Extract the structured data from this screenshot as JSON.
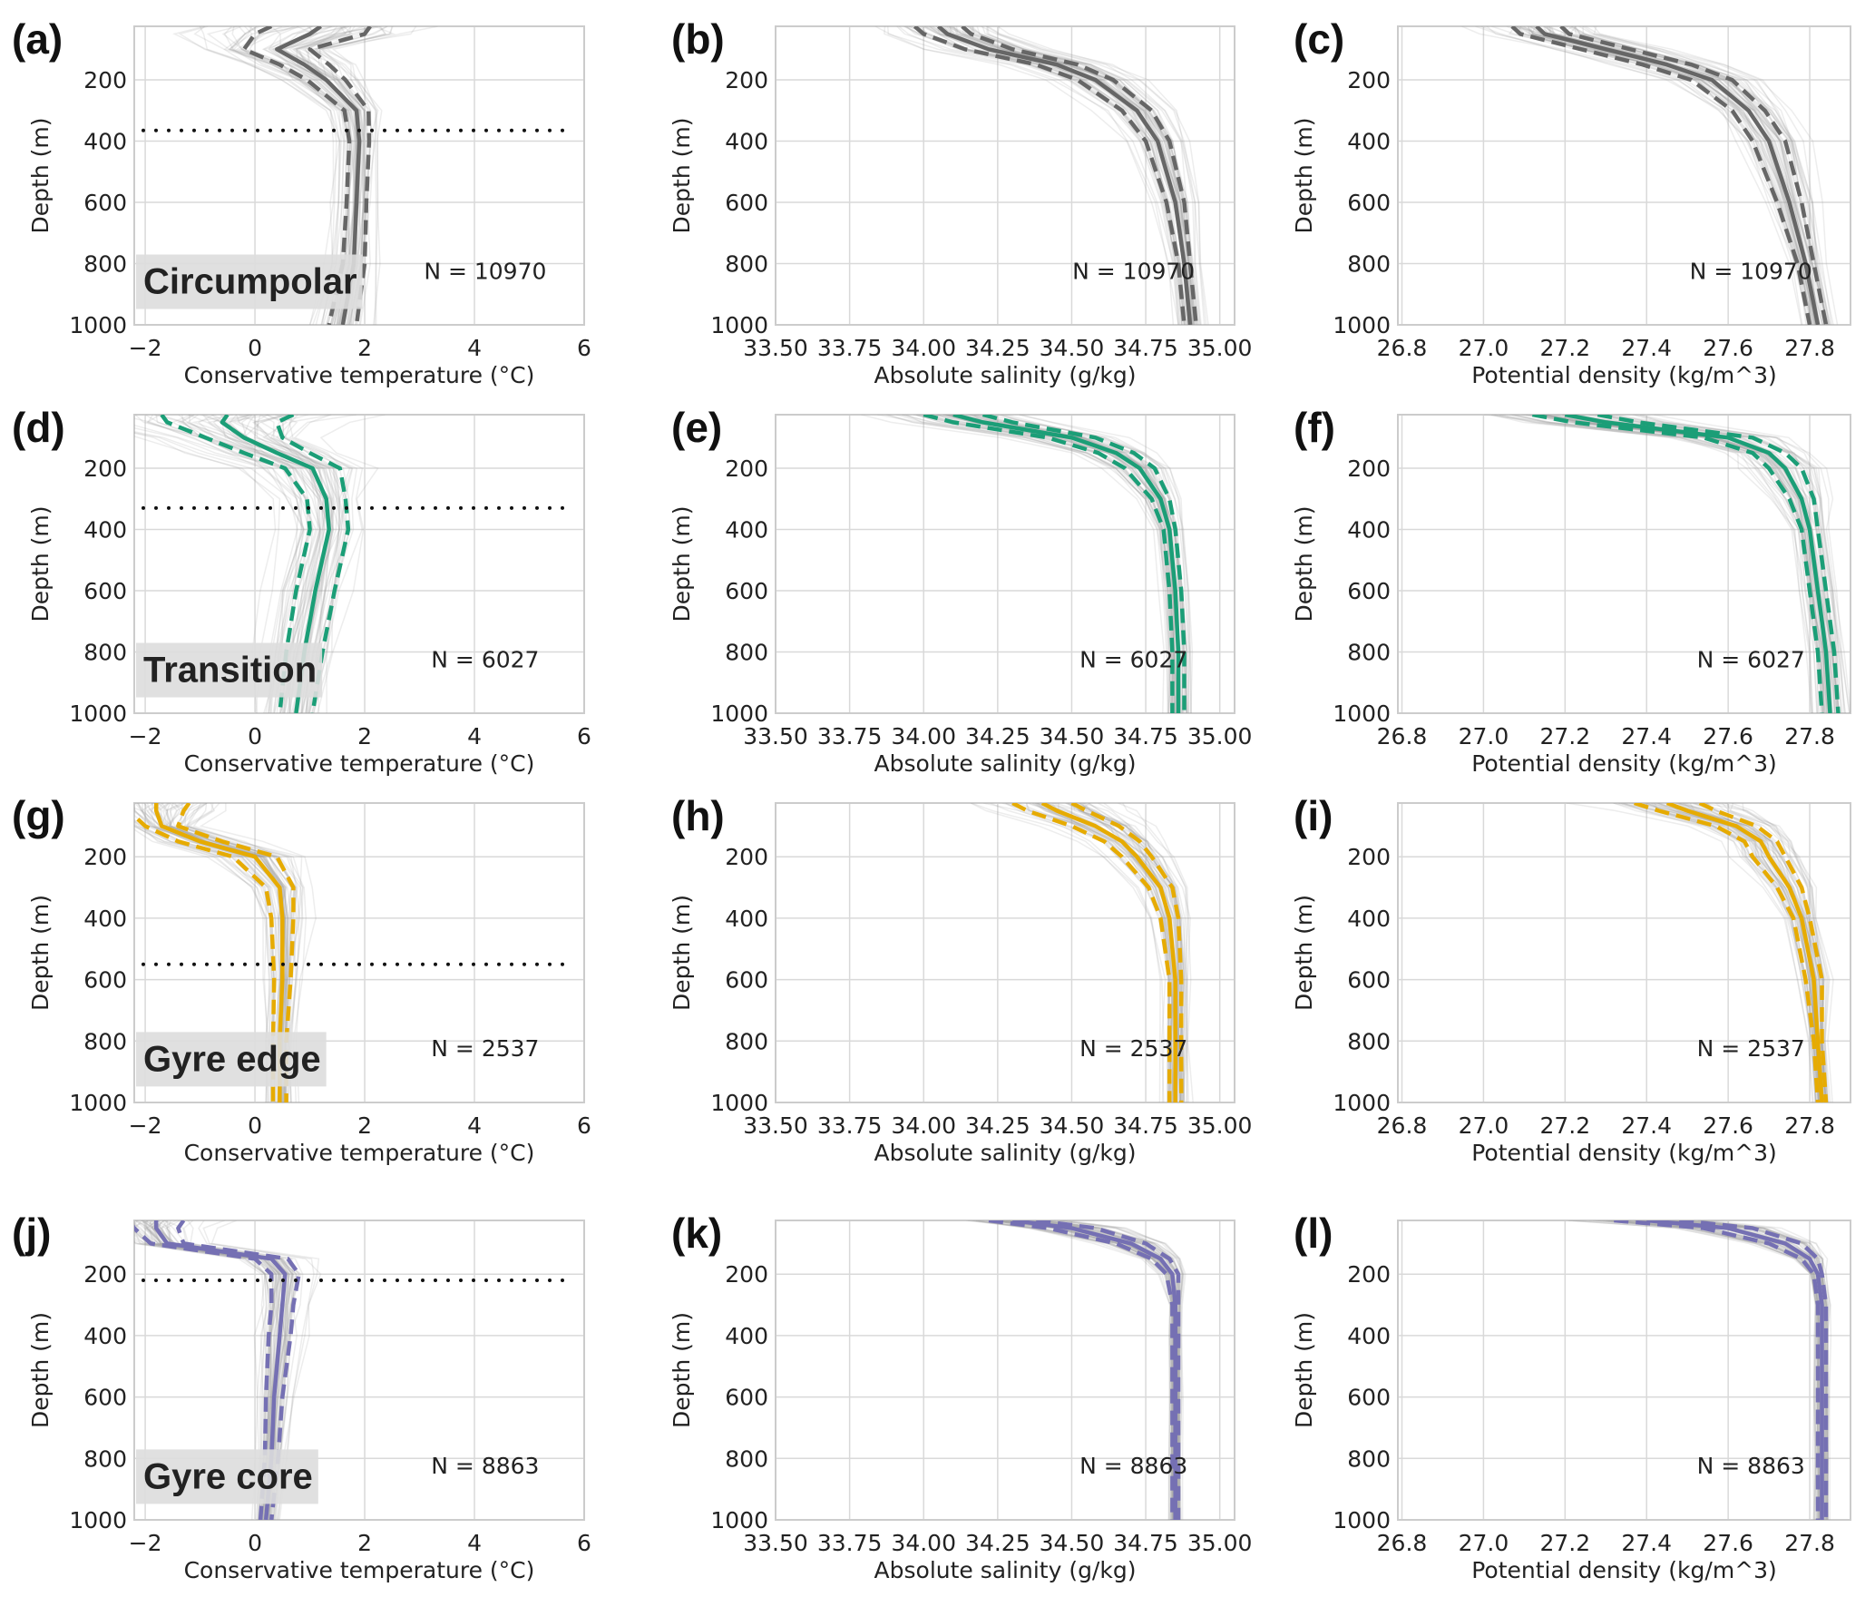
{
  "chart_data": {
    "type": "line",
    "grid": true,
    "depth_axis": {
      "label": "Depth (m)",
      "ylim": [
        1000,
        25
      ],
      "ticks": [
        "200",
        "400",
        "600",
        "800",
        "1000"
      ],
      "tick_values": [
        200,
        400,
        600,
        800,
        1000
      ]
    },
    "depth": [
      25,
      50,
      100,
      150,
      200,
      300,
      400,
      600,
      800,
      1000
    ],
    "x_axes": {
      "temperature": {
        "label": "Conservative temperature (°C)",
        "xlim": [
          -2.2,
          6
        ],
        "ticks": [
          "−2",
          "0",
          "2",
          "4",
          "6"
        ],
        "tick_values": [
          -2,
          0,
          2,
          4,
          6
        ]
      },
      "salinity": {
        "label": "Absolute salinity (g/kg)",
        "xlim": [
          33.5,
          35.05
        ],
        "ticks": [
          "33.50",
          "33.75",
          "34.00",
          "34.25",
          "34.50",
          "34.75",
          "35.00"
        ],
        "tick_values": [
          33.5,
          33.75,
          34.0,
          34.25,
          34.5,
          34.75,
          35.0
        ]
      },
      "density": {
        "label": "Potential density (kg/m^3)",
        "xlim": [
          26.79,
          27.9
        ],
        "ticks": [
          "26.8",
          "27.0",
          "27.2",
          "27.4",
          "27.6",
          "27.8"
        ],
        "tick_values": [
          26.8,
          27.0,
          27.2,
          27.4,
          27.6,
          27.8
        ]
      }
    },
    "rows": [
      {
        "region": "Circumpolar",
        "color": "#666666",
        "n_label": "N = 10970",
        "mixed_layer_depth": 365,
        "panels": [
          {
            "letter": "(a)",
            "axis": "temperature",
            "mean": [
              1.2,
              1.0,
              0.4,
              0.9,
              1.3,
              1.85,
              1.9,
              1.85,
              1.8,
              1.6
            ],
            "std": [
              0.9,
              1.0,
              0.6,
              0.45,
              0.35,
              0.22,
              0.18,
              0.18,
              0.2,
              0.25
            ]
          },
          {
            "letter": "(b)",
            "axis": "salinity",
            "mean": [
              34.05,
              34.08,
              34.22,
              34.45,
              34.58,
              34.72,
              34.79,
              34.85,
              34.88,
              34.9
            ],
            "std": [
              0.08,
              0.08,
              0.08,
              0.07,
              0.06,
              0.05,
              0.04,
              0.03,
              0.02,
              0.02
            ]
          },
          {
            "letter": "(c)",
            "axis": "density",
            "mean": [
              27.13,
              27.15,
              27.3,
              27.45,
              27.56,
              27.65,
              27.7,
              27.75,
              27.79,
              27.82
            ],
            "std": [
              0.06,
              0.06,
              0.06,
              0.06,
              0.05,
              0.04,
              0.04,
              0.03,
              0.02,
              0.02
            ]
          }
        ]
      },
      {
        "region": "Transition",
        "color": "#1b9e77",
        "n_label": "N = 6027",
        "mixed_layer_depth": 330,
        "panels": [
          {
            "letter": "(d)",
            "axis": "temperature",
            "mean": [
              -0.5,
              -0.6,
              -0.2,
              0.4,
              1.05,
              1.3,
              1.35,
              1.1,
              0.9,
              0.75
            ],
            "std": [
              1.2,
              1.0,
              0.7,
              0.6,
              0.5,
              0.35,
              0.35,
              0.35,
              0.33,
              0.3
            ]
          },
          {
            "letter": "(e)",
            "axis": "salinity",
            "mean": [
              34.1,
              34.2,
              34.5,
              34.65,
              34.73,
              34.8,
              34.83,
              34.85,
              34.86,
              34.86
            ],
            "std": [
              0.1,
              0.1,
              0.08,
              0.06,
              0.05,
              0.03,
              0.02,
              0.02,
              0.02,
              0.02
            ]
          },
          {
            "letter": "(f)",
            "axis": "density",
            "mean": [
              27.2,
              27.3,
              27.6,
              27.7,
              27.74,
              27.78,
              27.8,
              27.82,
              27.84,
              27.85
            ],
            "std": [
              0.08,
              0.08,
              0.06,
              0.04,
              0.04,
              0.03,
              0.02,
              0.02,
              0.02,
              0.02
            ]
          }
        ]
      },
      {
        "region": "Gyre edge",
        "color": "#e6ab02",
        "n_label": "N = 2537",
        "mixed_layer_depth": 550,
        "panels": [
          {
            "letter": "(g)",
            "axis": "temperature",
            "mean": [
              -1.8,
              -1.8,
              -1.7,
              -1.0,
              0.0,
              0.45,
              0.5,
              0.5,
              0.45,
              0.45
            ],
            "std": [
              0.6,
              0.5,
              0.3,
              0.4,
              0.4,
              0.25,
              0.2,
              0.15,
              0.12,
              0.12
            ]
          },
          {
            "letter": "(h)",
            "axis": "salinity",
            "mean": [
              34.4,
              34.45,
              34.58,
              34.67,
              34.72,
              34.8,
              34.83,
              34.85,
              34.85,
              34.85
            ],
            "std": [
              0.1,
              0.1,
              0.08,
              0.06,
              0.05,
              0.04,
              0.03,
              0.02,
              0.02,
              0.02
            ]
          },
          {
            "letter": "(i)",
            "axis": "density",
            "mean": [
              27.45,
              27.5,
              27.62,
              27.68,
              27.7,
              27.75,
              27.78,
              27.81,
              27.82,
              27.83
            ],
            "std": [
              0.08,
              0.07,
              0.05,
              0.04,
              0.04,
              0.03,
              0.02,
              0.02,
              0.01,
              0.01
            ]
          }
        ]
      },
      {
        "region": "Gyre core",
        "color": "#7570b3",
        "n_label": "N = 8863",
        "mixed_layer_depth": 220,
        "panels": [
          {
            "letter": "(j)",
            "axis": "temperature",
            "mean": [
              -1.8,
              -1.8,
              -1.6,
              0.3,
              0.55,
              0.5,
              0.45,
              0.35,
              0.3,
              0.2
            ],
            "std": [
              0.5,
              0.4,
              0.3,
              0.3,
              0.25,
              0.2,
              0.2,
              0.15,
              0.12,
              0.1
            ]
          },
          {
            "letter": "(k)",
            "axis": "salinity",
            "mean": [
              34.3,
              34.5,
              34.7,
              34.8,
              34.84,
              34.85,
              34.85,
              34.85,
              34.85,
              34.85
            ],
            "std": [
              0.08,
              0.08,
              0.05,
              0.03,
              0.02,
              0.01,
              0.01,
              0.01,
              0.01,
              0.01
            ]
          },
          {
            "letter": "(l)",
            "axis": "density",
            "mean": [
              27.4,
              27.6,
              27.74,
              27.8,
              27.82,
              27.83,
              27.83,
              27.83,
              27.83,
              27.83
            ],
            "std": [
              0.08,
              0.06,
              0.04,
              0.02,
              0.01,
              0.01,
              0.01,
              0.01,
              0.01,
              0.01
            ]
          }
        ]
      }
    ]
  }
}
